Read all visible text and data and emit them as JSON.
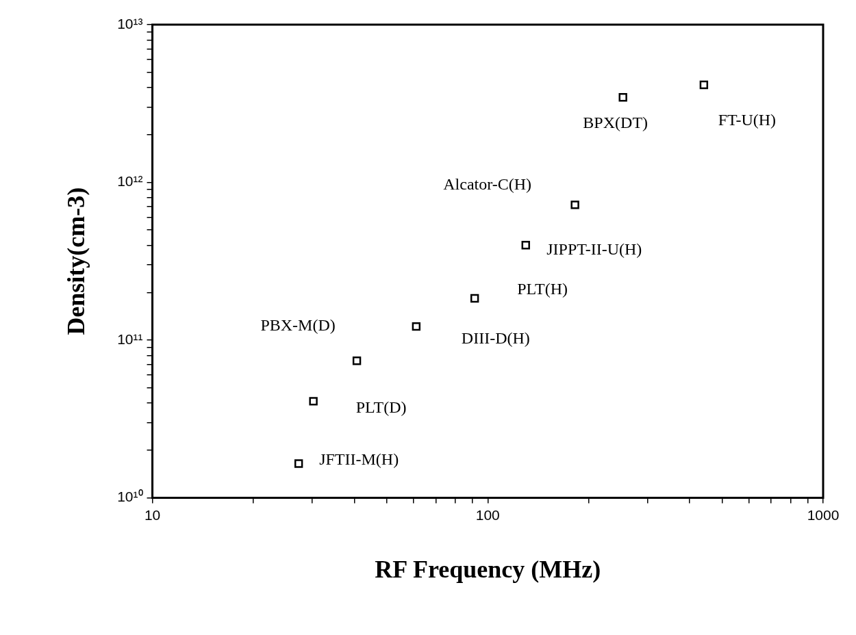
{
  "chart_data": {
    "type": "scatter",
    "xlabel": "RF Frequency (MHz)",
    "ylabel": "Density(cm-3)",
    "x": [
      27.3,
      30.2,
      40.7,
      61.2,
      91.4,
      129.8,
      182,
      253,
      441
    ],
    "series": [
      {
        "color": "#000000",
        "values": [
          16500000000.0,
          41000000000.0,
          74000000000.0,
          122000000000.0,
          184000000000.0,
          400000000000.0,
          720000000000.0,
          3460000000000.0,
          4150000000000.0
        ]
      }
    ],
    "log": "xy",
    "marker": "square",
    "grid": false,
    "legend": false,
    "xlim": [
      10,
      1000
    ],
    "ylim": [
      10000000000.0,
      10000000000000.0
    ],
    "xticks": [
      10,
      {
        "value": 20,
        "label": null
      },
      {
        "value": 30,
        "label": null
      },
      {
        "value": 40,
        "label": null
      },
      {
        "value": 50,
        "label": null
      },
      {
        "value": 60,
        "label": null
      },
      {
        "value": 70,
        "label": null
      },
      {
        "value": 80,
        "label": null
      },
      {
        "value": 90,
        "label": null
      },
      100,
      {
        "value": 200,
        "label": null
      },
      {
        "value": 300,
        "label": null
      },
      {
        "value": 400,
        "label": null
      },
      {
        "value": 500,
        "label": null
      },
      {
        "value": 600,
        "label": null
      },
      {
        "value": 700,
        "label": null
      },
      {
        "value": 800,
        "label": null
      },
      {
        "value": 900,
        "label": null
      },
      1000
    ],
    "yticks": [
      {
        "value": 10000000000.0,
        "label": "10¹⁰"
      },
      {
        "value": 20000000000.0,
        "label": null
      },
      {
        "value": 30000000000.0,
        "label": null
      },
      {
        "value": 40000000000.0,
        "label": null
      },
      {
        "value": 50000000000.0,
        "label": null
      },
      {
        "value": 60000000000.0,
        "label": null
      },
      {
        "value": 70000000000.0,
        "label": null
      },
      {
        "value": 80000000000.0,
        "label": null
      },
      {
        "value": 90000000000.0,
        "label": null
      },
      {
        "value": 100000000000.0,
        "label": "10¹¹"
      },
      {
        "value": 200000000000.0,
        "label": null
      },
      {
        "value": 300000000000.0,
        "label": null
      },
      {
        "value": 400000000000.0,
        "label": null
      },
      {
        "value": 500000000000.0,
        "label": null
      },
      {
        "value": 600000000000.0,
        "label": null
      },
      {
        "value": 700000000000.0,
        "label": null
      },
      {
        "value": 800000000000.0,
        "label": null
      },
      {
        "value": 900000000000.0,
        "label": null
      },
      {
        "value": 1000000000000.0,
        "label": "10¹²"
      },
      {
        "value": 2000000000000.0,
        "label": null
      },
      {
        "value": 3000000000000.0,
        "label": null
      },
      {
        "value": 4000000000000.0,
        "label": null
      },
      {
        "value": 5000000000000.0,
        "label": null
      },
      {
        "value": 6000000000000.0,
        "label": null
      },
      {
        "value": 7000000000000.0,
        "label": null
      },
      {
        "value": 8000000000000.0,
        "label": null
      },
      {
        "value": 9000000000000.0,
        "label": null
      },
      {
        "value": 10000000000000.0,
        "label": "10¹³"
      }
    ],
    "annotations": [
      {
        "text": "JFTII-M(H)",
        "x": 27.3,
        "y": 16500000000.0
      },
      {
        "text": "PLT(D)",
        "x": 30.2,
        "y": 41000000000.0
      },
      {
        "text": "PBX-M(D)",
        "x": 40.7,
        "y": 74000000000.0
      },
      {
        "text": "DIII-D(H)",
        "x": 61.2,
        "y": 122000000000.0
      },
      {
        "text": "PLT(H)",
        "x": 91.4,
        "y": 184000000000.0
      },
      {
        "text": "JIPPT-II-U(H)",
        "x": 129.8,
        "y": 400000000000.0
      },
      {
        "text": "Alcator-C(H)",
        "x": 182,
        "y": 720000000000.0
      },
      {
        "text": "BPX(DT)",
        "x": 253,
        "y": 3460000000000.0
      },
      {
        "text": "FT-U(H)",
        "x": 441,
        "y": 4150000000000.0
      }
    ]
  }
}
